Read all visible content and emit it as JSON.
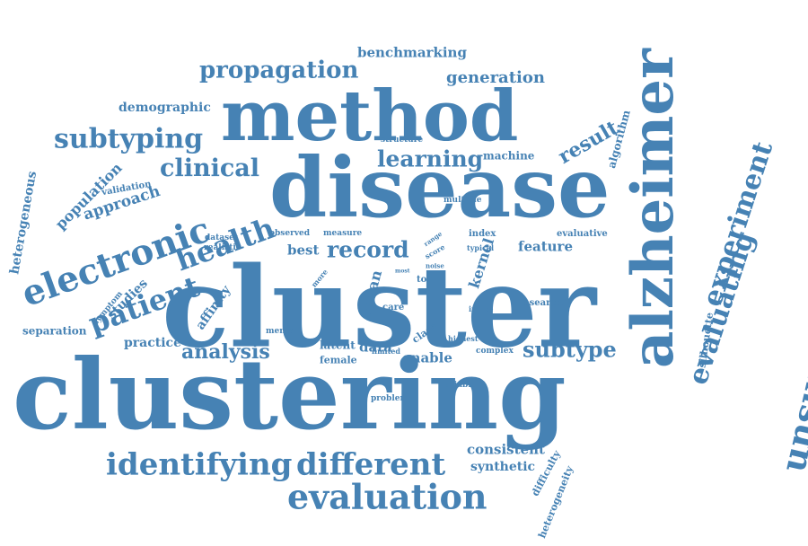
{
  "color": "#4682b4",
  "words": [
    {
      "text": "clustering",
      "weight": 100
    },
    {
      "text": "cluster",
      "weight": 96
    },
    {
      "text": "disease",
      "weight": 80
    },
    {
      "text": "method",
      "weight": 68
    },
    {
      "text": "alzheimer",
      "weight": 62
    },
    {
      "text": "unsupervised",
      "weight": 42
    },
    {
      "text": "electronic",
      "weight": 36
    },
    {
      "text": "evaluation",
      "weight": 34
    },
    {
      "text": "identifying",
      "weight": 32
    },
    {
      "text": "different",
      "weight": 32
    },
    {
      "text": "experiment",
      "weight": 30
    },
    {
      "text": "evaluating",
      "weight": 30
    },
    {
      "text": "patient",
      "weight": 28
    },
    {
      "text": "health",
      "weight": 28
    },
    {
      "text": "subtyping",
      "weight": 26
    },
    {
      "text": "propagation",
      "weight": 24
    },
    {
      "text": "clinical",
      "weight": 24
    },
    {
      "text": "learning",
      "weight": 22
    },
    {
      "text": "record",
      "weight": 22
    },
    {
      "text": "subtype",
      "weight": 22
    },
    {
      "text": "analysis",
      "weight": 20
    },
    {
      "text": "result",
      "weight": 20
    },
    {
      "text": "generation",
      "weight": 18
    },
    {
      "text": "benchmarking",
      "weight": 16
    },
    {
      "text": "approach",
      "weight": 16
    },
    {
      "text": "population",
      "weight": 16
    },
    {
      "text": "heterogeneous",
      "weight": 14
    },
    {
      "text": "demographic",
      "weight": 14
    },
    {
      "text": "affinity",
      "weight": 14
    },
    {
      "text": "studies",
      "weight": 14
    },
    {
      "text": "mean",
      "weight": 14
    },
    {
      "text": "kernel",
      "weight": 14
    },
    {
      "text": "feature",
      "weight": 14
    },
    {
      "text": "consistent",
      "weight": 14
    },
    {
      "text": "synthetic",
      "weight": 13
    },
    {
      "text": "algorithm",
      "weight": 12
    },
    {
      "text": "machine",
      "weight": 12
    },
    {
      "text": "best",
      "weight": 14
    },
    {
      "text": "practice",
      "weight": 13
    },
    {
      "text": "data",
      "weight": 14
    },
    {
      "text": "enable",
      "weight": 14
    },
    {
      "text": "latent",
      "weight": 12
    },
    {
      "text": "female",
      "weight": 11
    },
    {
      "text": "separation",
      "weight": 12
    },
    {
      "text": "silhouette",
      "weight": 11
    },
    {
      "text": "difficulty",
      "weight": 11
    },
    {
      "text": "heterogeneity",
      "weight": 11
    },
    {
      "text": "research",
      "weight": 10
    },
    {
      "text": "validation",
      "weight": 10
    },
    {
      "text": "structure",
      "weight": 9
    },
    {
      "text": "multiple",
      "weight": 9
    },
    {
      "text": "dataset",
      "weight": 9
    },
    {
      "text": "realistic",
      "weight": 9
    },
    {
      "text": "observed",
      "weight": 9
    },
    {
      "text": "measure",
      "weight": 9
    },
    {
      "text": "index",
      "weight": 10
    },
    {
      "text": "evaluative",
      "weight": 10
    },
    {
      "text": "typical",
      "weight": 8
    },
    {
      "text": "range",
      "weight": 7
    },
    {
      "text": "score",
      "weight": 8
    },
    {
      "text": "noise",
      "weight": 7
    },
    {
      "text": "most",
      "weight": 6
    },
    {
      "text": "more",
      "weight": 8
    },
    {
      "text": "tool",
      "weight": 10
    },
    {
      "text": "care",
      "weight": 10
    },
    {
      "text": "indice",
      "weight": 8
    },
    {
      "text": "class",
      "weight": 11
    },
    {
      "text": "highest",
      "weight": 8
    },
    {
      "text": "limited",
      "weight": 8
    },
    {
      "text": "complex",
      "weight": 9
    },
    {
      "text": "mental",
      "weight": 9
    },
    {
      "text": "symptom",
      "weight": 9
    },
    {
      "text": "problem",
      "weight": 9
    },
    {
      "text": "variable",
      "weight": 9
    }
  ]
}
